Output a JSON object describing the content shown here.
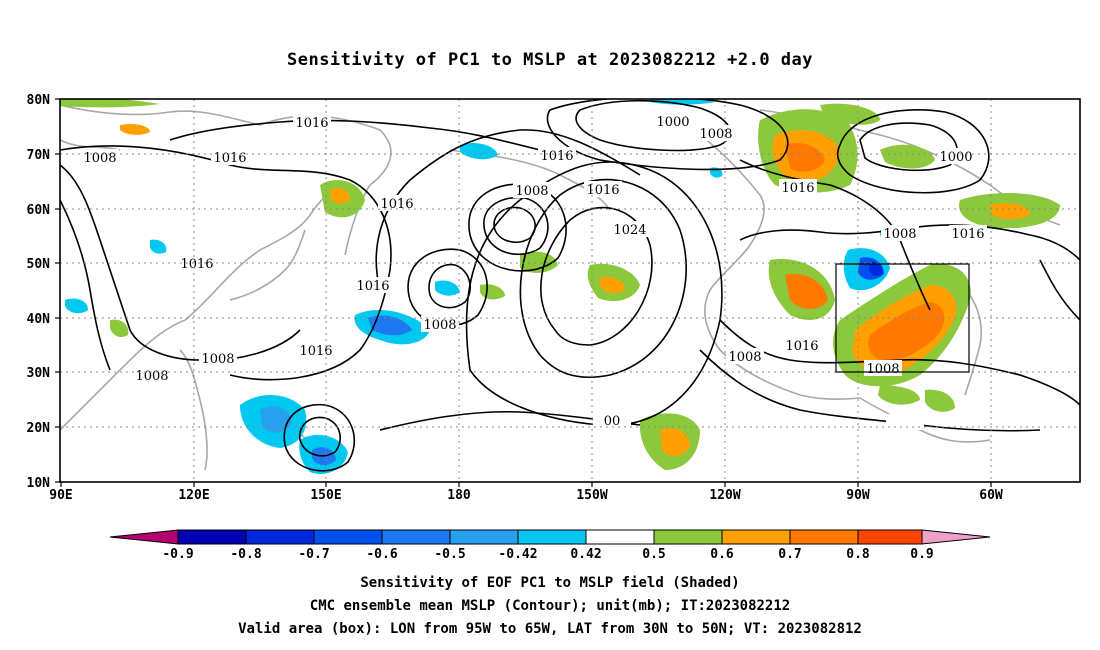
{
  "title": "Sensitivity of PC1 to MSLP at 2023082212 +2.0 day",
  "map": {
    "lat_labels": [
      "80N",
      "70N",
      "60N",
      "50N",
      "40N",
      "30N",
      "20N",
      "10N"
    ],
    "lon_labels": [
      "90E",
      "120E",
      "150E",
      "180",
      "150W",
      "120W",
      "90W",
      "60W"
    ],
    "contour_labels": [
      {
        "text": "1016"
      },
      {
        "text": "1008"
      },
      {
        "text": "1016"
      },
      {
        "text": "1000"
      },
      {
        "text": "1008"
      },
      {
        "text": "1016"
      },
      {
        "text": "1008"
      },
      {
        "text": "1016"
      },
      {
        "text": "1000"
      },
      {
        "text": "1016"
      },
      {
        "text": "1016"
      },
      {
        "text": "1008"
      },
      {
        "text": "1024"
      },
      {
        "text": "1008"
      },
      {
        "text": "1016"
      },
      {
        "text": "1016"
      },
      {
        "text": "1008"
      },
      {
        "text": "1008"
      },
      {
        "text": "1016"
      },
      {
        "text": "1008"
      },
      {
        "text": "1016"
      },
      {
        "text": "1016"
      },
      {
        "text": "1008"
      },
      {
        "text": "00"
      }
    ],
    "valid_box": {
      "lon_from": "95W",
      "lon_to": "65W",
      "lat_from": "30N",
      "lat_to": "50N"
    }
  },
  "colorbar": {
    "labels": [
      "-0.9",
      "-0.8",
      "-0.7",
      "-0.6",
      "-0.5",
      "-0.42",
      "0.42",
      "0.5",
      "0.6",
      "0.7",
      "0.8",
      "0.9"
    ],
    "colors": [
      "#b4006e",
      "#0000b4",
      "#0028dc",
      "#0050f0",
      "#1e78f0",
      "#28a0f0",
      "#00c8f0",
      "#ffffff",
      "#8cc83c",
      "#ffa000",
      "#ff7800",
      "#ff4600",
      "#ff1e00",
      "#ff0000",
      "#f0a0c8"
    ]
  },
  "captions": [
    "Sensitivity of EOF PC1 to MSLP field (Shaded)",
    "CMC ensemble mean MSLP (Contour); unit(mb); IT:2023082212",
    "Valid area (box): LON from 95W to 65W, LAT from 30N to 50N; VT: 2023082812"
  ]
}
